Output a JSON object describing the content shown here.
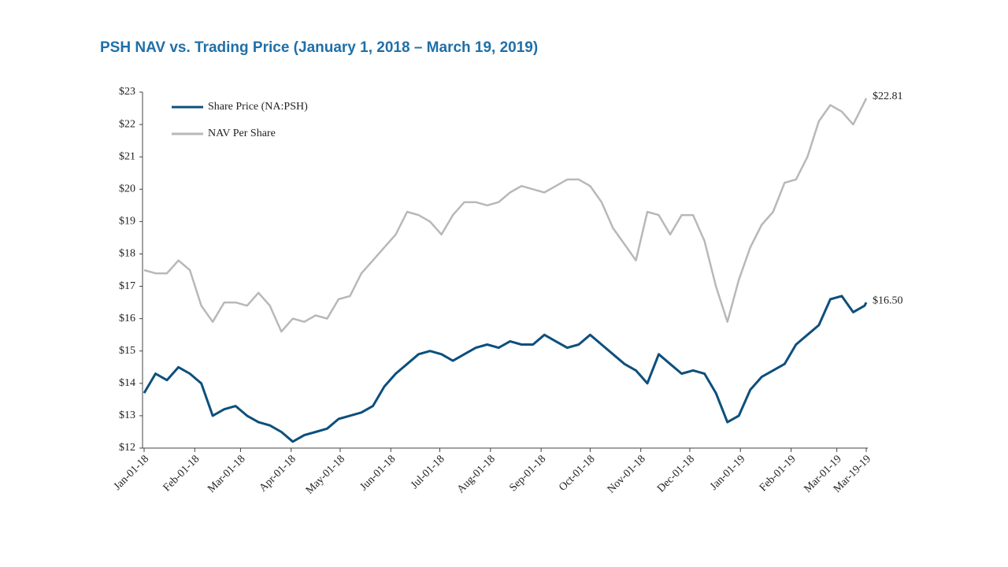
{
  "chart_data": {
    "type": "line",
    "title": "PSH NAV vs. Trading Price (January 1, 2018 – March 19, 2019)",
    "x": [
      "2018-01-01",
      "2018-01-08",
      "2018-01-15",
      "2018-01-22",
      "2018-01-29",
      "2018-02-05",
      "2018-02-12",
      "2018-02-19",
      "2018-02-26",
      "2018-03-05",
      "2018-03-12",
      "2018-03-19",
      "2018-03-26",
      "2018-04-02",
      "2018-04-09",
      "2018-04-16",
      "2018-04-23",
      "2018-04-30",
      "2018-05-07",
      "2018-05-14",
      "2018-05-21",
      "2018-05-28",
      "2018-06-04",
      "2018-06-11",
      "2018-06-18",
      "2018-06-25",
      "2018-07-02",
      "2018-07-09",
      "2018-07-16",
      "2018-07-23",
      "2018-07-30",
      "2018-08-06",
      "2018-08-13",
      "2018-08-20",
      "2018-08-27",
      "2018-09-03",
      "2018-09-10",
      "2018-09-17",
      "2018-09-24",
      "2018-10-01",
      "2018-10-08",
      "2018-10-15",
      "2018-10-22",
      "2018-10-29",
      "2018-11-05",
      "2018-11-12",
      "2018-11-19",
      "2018-11-26",
      "2018-12-03",
      "2018-12-10",
      "2018-12-17",
      "2018-12-24",
      "2018-12-31",
      "2019-01-07",
      "2019-01-14",
      "2019-01-21",
      "2019-01-28",
      "2019-02-04",
      "2019-02-11",
      "2019-02-18",
      "2019-02-25",
      "2019-03-04",
      "2019-03-11",
      "2019-03-18",
      "2019-03-19"
    ],
    "series": [
      {
        "name": "Share Price (NA:PSH)",
        "color": "#0d4f7c",
        "values": [
          13.7,
          14.3,
          14.1,
          14.5,
          14.3,
          14.0,
          13.0,
          13.2,
          13.3,
          13.0,
          12.8,
          12.7,
          12.5,
          12.2,
          12.4,
          12.5,
          12.6,
          12.9,
          13.0,
          13.1,
          13.3,
          13.9,
          14.3,
          14.6,
          14.9,
          15.0,
          14.9,
          14.7,
          14.9,
          15.1,
          15.2,
          15.1,
          15.3,
          15.2,
          15.2,
          15.5,
          15.3,
          15.1,
          15.2,
          15.5,
          15.2,
          14.9,
          14.6,
          14.4,
          14.0,
          14.9,
          14.6,
          14.3,
          14.4,
          14.3,
          13.7,
          12.8,
          13.0,
          13.8,
          14.2,
          14.4,
          14.6,
          15.2,
          15.5,
          15.8,
          16.6,
          16.7,
          16.2,
          16.4,
          16.5
        ],
        "value_labels": [
          null,
          null,
          null,
          null,
          null,
          null,
          null,
          null,
          null,
          null,
          null,
          null,
          null,
          null,
          null,
          null,
          null,
          null,
          null,
          null,
          null,
          null,
          null,
          null,
          null,
          null,
          null,
          null,
          null,
          null,
          null,
          null,
          null,
          null,
          null,
          null,
          null,
          null,
          null,
          null,
          null,
          null,
          null,
          null,
          null,
          null,
          null,
          null,
          null,
          null,
          null,
          null,
          null,
          null,
          null,
          null,
          null,
          null,
          null,
          null,
          null,
          null,
          null,
          null,
          "$16.50"
        ]
      },
      {
        "name": "NAV Per Share",
        "color": "#b8b8b8",
        "values": [
          17.5,
          17.4,
          17.4,
          17.8,
          17.5,
          16.4,
          15.9,
          16.5,
          16.5,
          16.4,
          16.8,
          16.4,
          15.6,
          16.0,
          15.9,
          16.1,
          16.0,
          16.6,
          16.7,
          17.4,
          17.8,
          18.2,
          18.6,
          19.3,
          19.2,
          19.0,
          18.6,
          19.2,
          19.6,
          19.6,
          19.5,
          19.6,
          19.9,
          20.1,
          20.0,
          19.9,
          20.1,
          20.3,
          20.3,
          20.1,
          19.6,
          18.8,
          18.3,
          17.8,
          19.3,
          19.2,
          18.6,
          19.2,
          19.2,
          18.4,
          17.0,
          15.9,
          17.2,
          18.2,
          18.9,
          19.3,
          20.2,
          20.3,
          21.0,
          22.1,
          22.6,
          22.4,
          22.0,
          22.7,
          22.81
        ],
        "value_labels": [
          null,
          null,
          null,
          null,
          null,
          null,
          null,
          null,
          null,
          null,
          null,
          null,
          null,
          null,
          null,
          null,
          null,
          null,
          null,
          null,
          null,
          null,
          null,
          null,
          null,
          null,
          null,
          null,
          null,
          null,
          null,
          null,
          null,
          null,
          null,
          null,
          null,
          null,
          null,
          null,
          null,
          null,
          null,
          null,
          null,
          null,
          null,
          null,
          null,
          null,
          null,
          null,
          null,
          null,
          null,
          null,
          null,
          null,
          null,
          null,
          null,
          null,
          null,
          null,
          "$22.81"
        ]
      }
    ],
    "xlim": [
      "2018-01-01",
      "2019-03-19"
    ],
    "xticks": [
      {
        "value": "2018-01-01",
        "label": "Jan-01-18"
      },
      {
        "value": "2018-02-01",
        "label": "Feb-01-18"
      },
      {
        "value": "2018-03-01",
        "label": "Mar-01-18"
      },
      {
        "value": "2018-04-01",
        "label": "Apr-01-18"
      },
      {
        "value": "2018-05-01",
        "label": "May-01-18"
      },
      {
        "value": "2018-06-01",
        "label": "Jun-01-18"
      },
      {
        "value": "2018-07-01",
        "label": "Jul-01-18"
      },
      {
        "value": "2018-08-01",
        "label": "Aug-01-18"
      },
      {
        "value": "2018-09-01",
        "label": "Sep-01-18"
      },
      {
        "value": "2018-10-01",
        "label": "Oct-01-18"
      },
      {
        "value": "2018-11-01",
        "label": "Nov-01-18"
      },
      {
        "value": "2018-12-01",
        "label": "Dec-01-18"
      },
      {
        "value": "2019-01-01",
        "label": "Jan-01-19"
      },
      {
        "value": "2019-02-01",
        "label": "Feb-01-19"
      },
      {
        "value": "2019-03-01",
        "label": "Mar-01-19"
      },
      {
        "value": "2019-03-19",
        "label": "Mar-19-19"
      }
    ],
    "ylim": [
      12,
      23
    ],
    "yticks": [
      {
        "value": 12,
        "label": "$12"
      },
      {
        "value": 13,
        "label": "$13"
      },
      {
        "value": 14,
        "label": "$14"
      },
      {
        "value": 15,
        "label": "$15"
      },
      {
        "value": 16,
        "label": "$16"
      },
      {
        "value": 17,
        "label": "$17"
      },
      {
        "value": 18,
        "label": "$18"
      },
      {
        "value": 19,
        "label": "$19"
      },
      {
        "value": 20,
        "label": "$20"
      },
      {
        "value": 21,
        "label": "$21"
      },
      {
        "value": 22,
        "label": "$22"
      },
      {
        "value": 23,
        "label": "$23"
      }
    ],
    "grid": false,
    "legend": "upper left"
  }
}
